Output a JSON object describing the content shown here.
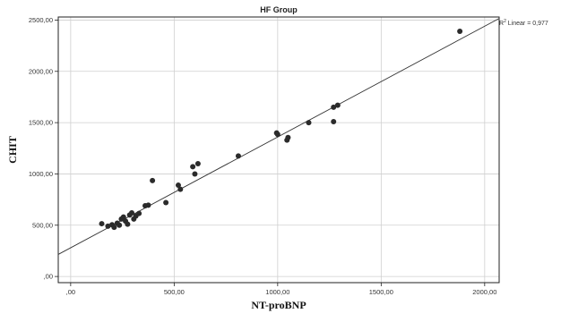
{
  "chart_data": {
    "type": "scatter",
    "title": "HF Group",
    "xlabel": "NT-proBNP",
    "ylabel": "CHIT",
    "xlim": [
      -60,
      2070
    ],
    "ylim": [
      -60,
      2530
    ],
    "x_ticks": [
      0,
      500,
      1000,
      1500,
      2000
    ],
    "x_tick_labels": [
      ",00",
      "500,00",
      "1000,00",
      "1500,00",
      "2000,00"
    ],
    "y_ticks": [
      0,
      500,
      1000,
      1500,
      2000,
      2500
    ],
    "y_tick_labels": [
      ",00",
      "500,00",
      "1000,00",
      "1500,00",
      "2000,00",
      "2500,00"
    ],
    "grid": true,
    "fit_line": {
      "type": "linear",
      "label_prefix": "R",
      "label_sup": "2",
      "label_suffix": " Linear = 0,977",
      "intercept": 280,
      "slope": 1.08
    },
    "series": [
      {
        "points": [
          {
            "x": 150,
            "y": 515
          },
          {
            "x": 180,
            "y": 490
          },
          {
            "x": 200,
            "y": 505
          },
          {
            "x": 210,
            "y": 480
          },
          {
            "x": 225,
            "y": 520
          },
          {
            "x": 235,
            "y": 500
          },
          {
            "x": 245,
            "y": 560
          },
          {
            "x": 255,
            "y": 580
          },
          {
            "x": 265,
            "y": 540
          },
          {
            "x": 275,
            "y": 510
          },
          {
            "x": 285,
            "y": 600
          },
          {
            "x": 295,
            "y": 620
          },
          {
            "x": 305,
            "y": 560
          },
          {
            "x": 315,
            "y": 590
          },
          {
            "x": 330,
            "y": 615
          },
          {
            "x": 360,
            "y": 690
          },
          {
            "x": 375,
            "y": 695
          },
          {
            "x": 395,
            "y": 935
          },
          {
            "x": 460,
            "y": 720
          },
          {
            "x": 520,
            "y": 890
          },
          {
            "x": 530,
            "y": 850
          },
          {
            "x": 590,
            "y": 1070
          },
          {
            "x": 600,
            "y": 1000
          },
          {
            "x": 615,
            "y": 1100
          },
          {
            "x": 810,
            "y": 1175
          },
          {
            "x": 995,
            "y": 1400
          },
          {
            "x": 1000,
            "y": 1385
          },
          {
            "x": 1045,
            "y": 1330
          },
          {
            "x": 1050,
            "y": 1355
          },
          {
            "x": 1150,
            "y": 1500
          },
          {
            "x": 1270,
            "y": 1650
          },
          {
            "x": 1270,
            "y": 1510
          },
          {
            "x": 1290,
            "y": 1670
          },
          {
            "x": 1880,
            "y": 2390
          }
        ]
      }
    ]
  }
}
